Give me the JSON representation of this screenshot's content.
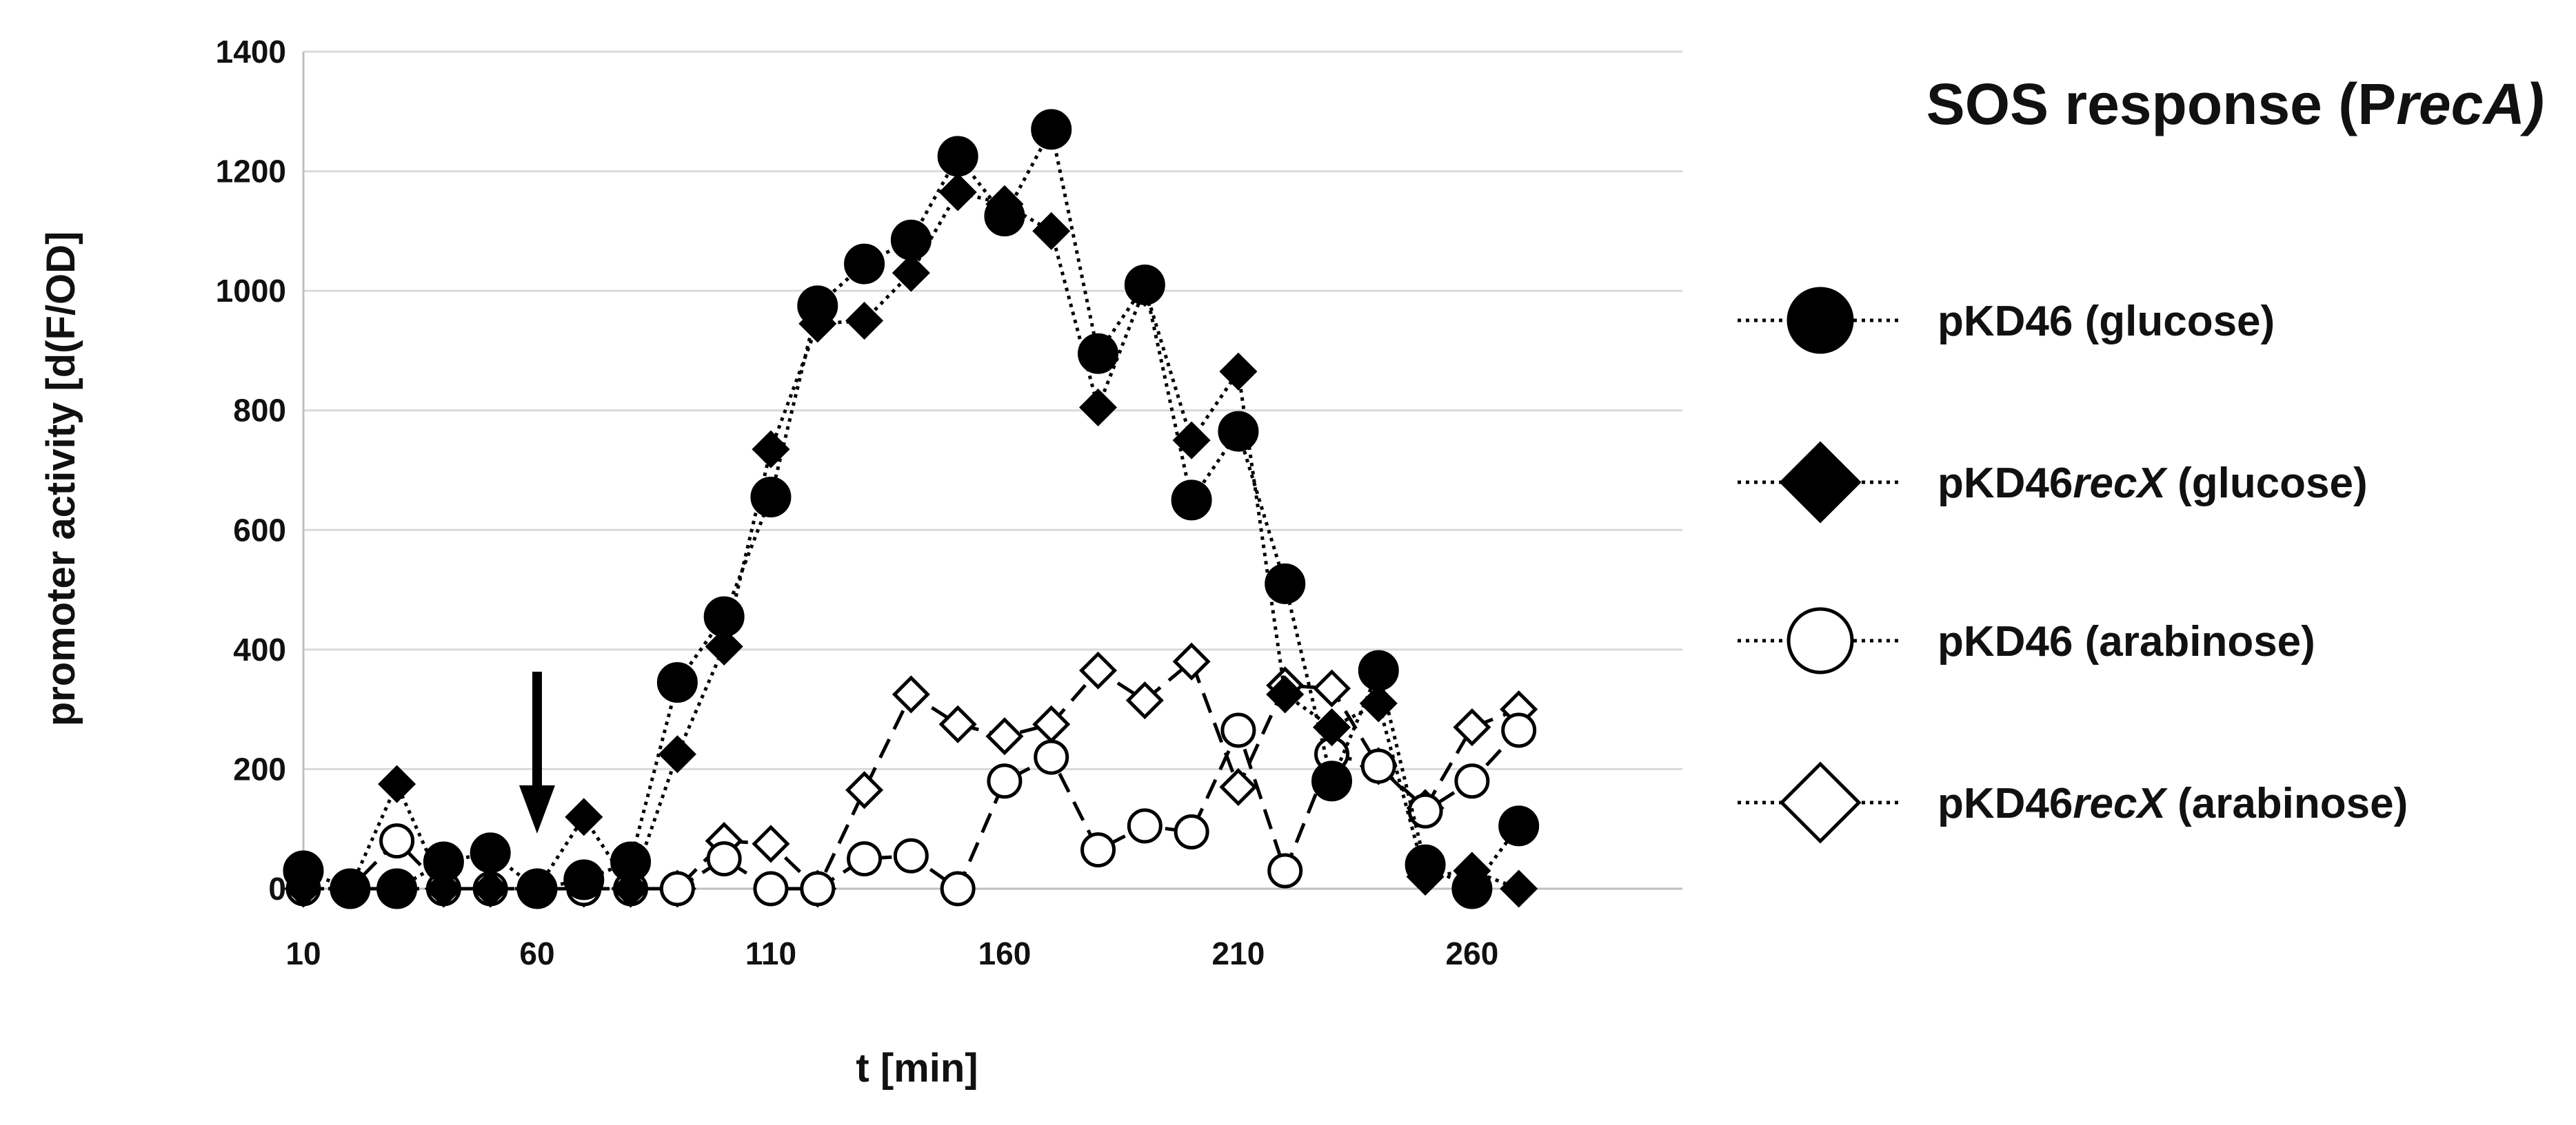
{
  "chart_data": {
    "type": "line",
    "title": "SOS response (P",
    "title_italic": "recA)",
    "xlabel": "t [min]",
    "ylabel": "promoter activity [d(F/OD]",
    "x_ticks": [
      "10",
      "60",
      "110",
      "160",
      "210",
      "260"
    ],
    "y_ticks": [
      "0",
      "200",
      "400",
      "600",
      "800",
      "1000",
      "1200",
      "1400"
    ],
    "xlim": [
      10,
      305
    ],
    "ylim": [
      0,
      1400
    ],
    "grid": "horizontal",
    "legend_position": "right",
    "annotation": "arrow-at-t-60",
    "x": [
      10,
      20,
      30,
      40,
      50,
      60,
      70,
      80,
      90,
      100,
      110,
      120,
      130,
      140,
      150,
      160,
      170,
      180,
      190,
      200,
      210,
      220,
      230,
      240,
      250,
      260,
      270
    ],
    "series": [
      {
        "name": "pKD46 (glucose)",
        "name_parts": [
          "pKD46 (glucose)"
        ],
        "marker": "circle",
        "fill": "#000000",
        "dash": "dotted",
        "values": [
          30,
          0,
          0,
          45,
          60,
          0,
          15,
          45,
          345,
          455,
          655,
          975,
          1045,
          1085,
          1225,
          1125,
          1270,
          895,
          1010,
          650,
          765,
          510,
          180,
          365,
          40,
          0,
          105
        ]
      },
      {
        "name": "pKD46recX (glucose)",
        "name_parts": [
          "pKD46",
          "recX",
          " (glucose)"
        ],
        "marker": "diamond",
        "fill": "#000000",
        "dash": "dotted",
        "values": [
          0,
          0,
          175,
          0,
          0,
          0,
          120,
          0,
          225,
          405,
          735,
          945,
          950,
          1030,
          1165,
          1145,
          1100,
          805,
          1005,
          750,
          865,
          325,
          270,
          310,
          20,
          30,
          0
        ]
      },
      {
        "name": "pKD46 (arabinose)",
        "name_parts": [
          "pKD46 (arabinose)"
        ],
        "marker": "circle",
        "fill": "#ffffff",
        "dash": "dashed",
        "values": [
          0,
          0,
          80,
          0,
          0,
          0,
          0,
          0,
          0,
          50,
          0,
          0,
          50,
          55,
          0,
          180,
          220,
          65,
          105,
          95,
          265,
          30,
          225,
          205,
          130,
          180,
          265
        ]
      },
      {
        "name": "pKD46recX (arabinose)",
        "name_parts": [
          "pKD46",
          "recX",
          " (arabinose)"
        ],
        "marker": "diamond",
        "fill": "#ffffff",
        "dash": "dashed",
        "values": [
          0,
          0,
          0,
          0,
          0,
          0,
          0,
          0,
          0,
          80,
          75,
          0,
          165,
          325,
          275,
          255,
          275,
          365,
          315,
          380,
          170,
          340,
          335,
          205,
          135,
          270,
          300
        ]
      }
    ]
  }
}
